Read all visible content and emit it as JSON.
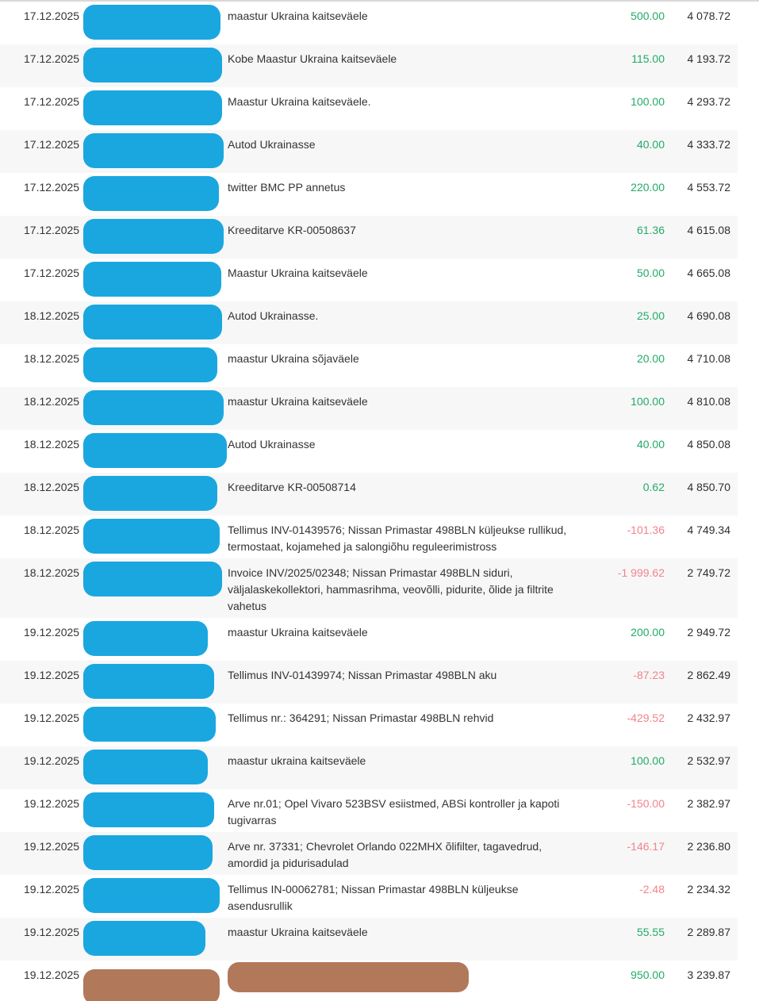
{
  "page": {
    "kind": "bank-account-statement-transaction-list",
    "top_border_color": "#d9d9d9",
    "row_alt_background": "#f7f7f7"
  },
  "colors": {
    "amount_positive": "#23aa68",
    "amount_negative": "#f2838b",
    "text": "#333333",
    "balance_text": "#2e2e2e",
    "redaction_blue": "#1aa7e0",
    "redaction_brown": "#b2785a"
  },
  "columns": [
    "date",
    "payer",
    "description",
    "amount",
    "balance"
  ],
  "transactions": [
    {
      "date": "17.12.2025",
      "description": "maastur Ukraina kaitseväele",
      "amount": "500.00",
      "balance": "4 078.72",
      "negative": false,
      "payer_redaction": "blue",
      "payer_redaction_width": 173,
      "description_redacted": false
    },
    {
      "date": "17.12.2025",
      "description": "Kobe Maastur Ukraina kaitseväele",
      "amount": "115.00",
      "balance": "4 193.72",
      "negative": false,
      "payer_redaction": "blue",
      "payer_redaction_width": 175,
      "description_redacted": false
    },
    {
      "date": "17.12.2025",
      "description": "Maastur Ukraina kaitseväele.",
      "amount": "100.00",
      "balance": "4 293.72",
      "negative": false,
      "payer_redaction": "blue",
      "payer_redaction_width": 175,
      "description_redacted": false
    },
    {
      "date": "17.12.2025",
      "description": "Autod Ukrainasse",
      "amount": "40.00",
      "balance": "4 333.72",
      "negative": false,
      "payer_redaction": "blue",
      "payer_redaction_width": 177,
      "description_redacted": false
    },
    {
      "date": "17.12.2025",
      "description": "twitter BMC PP annetus",
      "amount": "220.00",
      "balance": "4 553.72",
      "negative": false,
      "payer_redaction": "blue",
      "payer_redaction_width": 171,
      "description_redacted": false
    },
    {
      "date": "17.12.2025",
      "description": "Kreeditarve KR-00508637",
      "amount": "61.36",
      "balance": "4 615.08",
      "negative": false,
      "payer_redaction": "blue",
      "payer_redaction_width": 177,
      "description_redacted": false
    },
    {
      "date": "17.12.2025",
      "description": "Maastur Ukraina kaitseväele",
      "amount": "50.00",
      "balance": "4 665.08",
      "negative": false,
      "payer_redaction": "blue",
      "payer_redaction_width": 174,
      "description_redacted": false
    },
    {
      "date": "18.12.2025",
      "description": "Autod Ukrainasse.",
      "amount": "25.00",
      "balance": "4 690.08",
      "negative": false,
      "payer_redaction": "blue",
      "payer_redaction_width": 175,
      "description_redacted": false
    },
    {
      "date": "18.12.2025",
      "description": "maastur Ukraina sõjaväele",
      "amount": "20.00",
      "balance": "4 710.08",
      "negative": false,
      "payer_redaction": "blue",
      "payer_redaction_width": 169,
      "description_redacted": false
    },
    {
      "date": "18.12.2025",
      "description": "maastur Ukraina kaitseväele",
      "amount": "100.00",
      "balance": "4 810.08",
      "negative": false,
      "payer_redaction": "blue",
      "payer_redaction_width": 177,
      "description_redacted": false
    },
    {
      "date": "18.12.2025",
      "description": "Autod Ukrainasse",
      "amount": "40.00",
      "balance": "4 850.08",
      "negative": false,
      "payer_redaction": "blue",
      "payer_redaction_width": 181,
      "description_redacted": false
    },
    {
      "date": "18.12.2025",
      "description": "Kreeditarve KR-00508714",
      "amount": "0.62",
      "balance": "4 850.70",
      "negative": false,
      "payer_redaction": "blue",
      "payer_redaction_width": 169,
      "description_redacted": false
    },
    {
      "date": "18.12.2025",
      "description": "Tellimus INV-01439576; Nissan Primastar 498BLN küljeukse rullikud, termostaat, kojamehed ja salongiõhu reguleerimistross",
      "amount": "-101.36",
      "balance": "4 749.34",
      "negative": true,
      "payer_redaction": "blue",
      "payer_redaction_width": 172,
      "description_redacted": false
    },
    {
      "date": "18.12.2025",
      "description": "Invoice INV/2025/02348; Nissan Primastar 498BLN siduri, väljalaskekollektori, hammasrihma, veovõlli, pidurite, õlide ja filtrite vahetus",
      "amount": "-1 999.62",
      "balance": "2 749.72",
      "negative": true,
      "payer_redaction": "blue",
      "payer_redaction_width": 175,
      "description_redacted": false
    },
    {
      "date": "19.12.2025",
      "description": "maastur Ukraina kaitseväele",
      "amount": "200.00",
      "balance": "2 949.72",
      "negative": false,
      "payer_redaction": "blue",
      "payer_redaction_width": 157,
      "description_redacted": false
    },
    {
      "date": "19.12.2025",
      "description": "Tellimus INV-01439974; Nissan Primastar 498BLN aku",
      "amount": "-87.23",
      "balance": "2 862.49",
      "negative": true,
      "payer_redaction": "blue",
      "payer_redaction_width": 165,
      "description_redacted": false
    },
    {
      "date": "19.12.2025",
      "description": "Tellimus nr.: 364291; Nissan Primastar 498BLN rehvid",
      "amount": "-429.52",
      "balance": "2 432.97",
      "negative": true,
      "payer_redaction": "blue",
      "payer_redaction_width": 167,
      "description_redacted": false
    },
    {
      "date": "19.12.2025",
      "description": "maastur ukraina kaitseväele",
      "amount": "100.00",
      "balance": "2 532.97",
      "negative": false,
      "payer_redaction": "blue",
      "payer_redaction_width": 157,
      "description_redacted": false
    },
    {
      "date": "19.12.2025",
      "description": "Arve nr.01; Opel Vivaro 523BSV esiistmed, ABSi kontroller ja kapoti tugivarras",
      "amount": "-150.00",
      "balance": "2 382.97",
      "negative": true,
      "payer_redaction": "blue",
      "payer_redaction_width": 165,
      "description_redacted": false
    },
    {
      "date": "19.12.2025",
      "description": "Arve nr. 37331; Chevrolet Orlando 022MHX õlifilter, tagavedrud, amordid ja pidurisadulad",
      "amount": "-146.17",
      "balance": "2 236.80",
      "negative": true,
      "payer_redaction": "blue",
      "payer_redaction_width": 163,
      "description_redacted": false
    },
    {
      "date": "19.12.2025",
      "description": "Tellimus IN-00062781; Nissan Primastar 498BLN küljeukse asendusrullik",
      "amount": "-2.48",
      "balance": "2 234.32",
      "negative": true,
      "payer_redaction": "blue",
      "payer_redaction_width": 172,
      "description_redacted": false
    },
    {
      "date": "19.12.2025",
      "description": "maastur Ukraina kaitseväele",
      "amount": "55.55",
      "balance": "2 289.87",
      "negative": false,
      "payer_redaction": "blue",
      "payer_redaction_width": 154,
      "description_redacted": false
    },
    {
      "date": "19.12.2025",
      "description": "",
      "amount": "950.00",
      "balance": "3 239.87",
      "negative": false,
      "payer_redaction": "brown",
      "payer_redaction_width": 172,
      "description_redacted": true
    }
  ]
}
